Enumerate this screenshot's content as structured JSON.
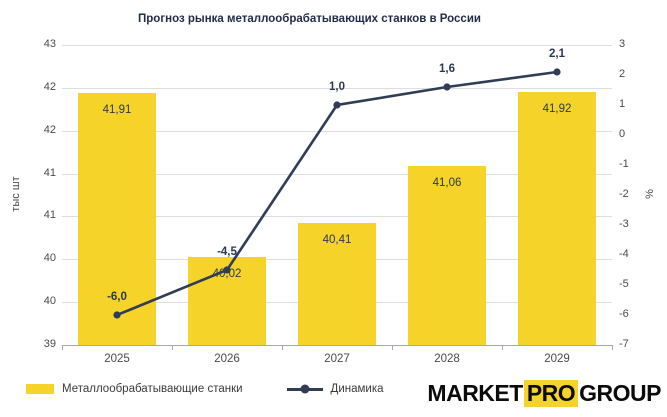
{
  "title": "Прогноз рынка металлообрабатывающих станков в России",
  "chart_data": {
    "type": "bar+line",
    "categories": [
      "2025",
      "2026",
      "2027",
      "2028",
      "2029"
    ],
    "series": [
      {
        "name": "Металлообрабатывающие станки",
        "type": "bar",
        "axis": "left",
        "values": [
          41.91,
          40.02,
          40.41,
          41.06,
          41.92
        ],
        "value_labels": [
          "41,91",
          "40,02",
          "40,41",
          "41,06",
          "41,92"
        ]
      },
      {
        "name": "Динамика",
        "type": "line",
        "axis": "right",
        "values": [
          -6.0,
          -4.5,
          1.0,
          1.6,
          2.1
        ],
        "value_labels": [
          "-6,0",
          "-4,5",
          "1,0",
          "1,6",
          "2,1"
        ]
      }
    ],
    "left_axis": {
      "title": "тыс шт",
      "tick_labels": [
        "43",
        "42",
        "42",
        "41",
        "41",
        "40",
        "40",
        "39"
      ],
      "range_displayed": [
        39,
        43
      ]
    },
    "right_axis": {
      "title": "%",
      "tick_labels": [
        "3",
        "2",
        "1",
        "0",
        "-1",
        "-2",
        "-3",
        "-4",
        "-5",
        "-6",
        "-7"
      ],
      "range": [
        -7,
        3
      ]
    },
    "grid": "horizontal",
    "legend_position": "bottom-left",
    "bar_render": {
      "baseline": 39,
      "visible_span": 3.46
    }
  },
  "logo": {
    "market": "MARKET",
    "pro": "PRO",
    "group": "GROUP"
  },
  "colors": {
    "bar_yellow": "#F5D328",
    "line_navy": "#313C55",
    "title_navy": "#1F2B47",
    "grid_gray": "#DEDEDE",
    "axis_gray": "#A8A8A8",
    "tick_text": "#4A4A4A"
  }
}
